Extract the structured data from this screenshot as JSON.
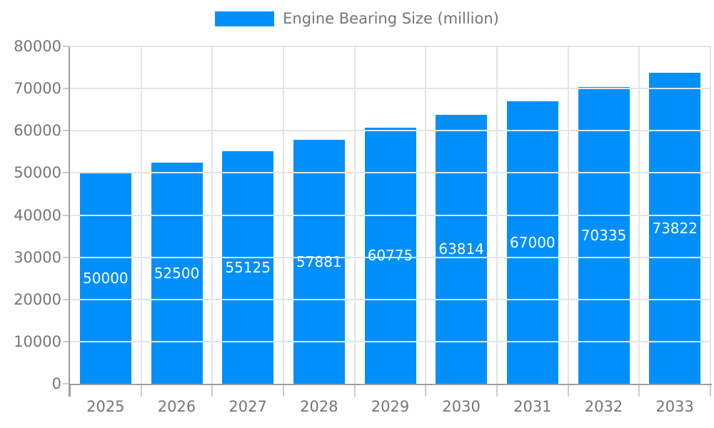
{
  "legend": {
    "label": "Engine Bearing Size (million)"
  },
  "colors": {
    "bar": "#008ffb",
    "bar_label_text": "#ffffff",
    "axis_text": "#757575",
    "axis_line": "#9e9e9e",
    "tick_line": "#cccccc",
    "gridline": "#e4e4e4",
    "background": "#ffffff"
  },
  "chart_data": {
    "type": "bar",
    "title": "",
    "xlabel": "",
    "ylabel": "",
    "categories": [
      "2025",
      "2026",
      "2027",
      "2028",
      "2029",
      "2030",
      "2031",
      "2032",
      "2033"
    ],
    "series": [
      {
        "name": "Engine Bearing Size (million)",
        "values": [
          50000,
          52500,
          55125,
          57881,
          60775,
          63814,
          67000,
          70335,
          73822
        ]
      }
    ],
    "data_labels": [
      "50000",
      "52500",
      "55125",
      "57881",
      "60775",
      "63814",
      "67000",
      "70335",
      "73822"
    ],
    "data_label_position": "inside-center",
    "ylim": [
      0,
      80000
    ],
    "y_tick_step": 10000,
    "y_tick_labels": [
      "0",
      "10000",
      "20000",
      "30000",
      "40000",
      "50000",
      "60000",
      "70000",
      "80000"
    ],
    "grid": "both",
    "legend_position": "top"
  }
}
